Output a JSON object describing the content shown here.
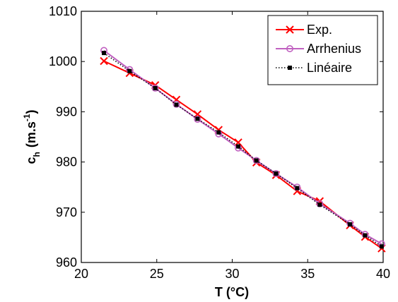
{
  "chart_data": {
    "type": "line",
    "title": "",
    "xlabel": "T (°C)",
    "ylabel": {
      "main": "c",
      "sub": "h",
      "unit_prefix": "(m.s",
      "unit_sup": "-1",
      "unit_suffix": ")"
    },
    "xlim": [
      20,
      40
    ],
    "ylim": [
      960,
      1010
    ],
    "xticks": [
      20,
      25,
      30,
      35,
      40
    ],
    "yticks": [
      960,
      970,
      980,
      990,
      1000,
      1010
    ],
    "xtick_labels": [
      "20",
      "25",
      "30",
      "35",
      "40"
    ],
    "ytick_labels": [
      "960",
      "970",
      "980",
      "990",
      "1000",
      "1010"
    ],
    "grid": false,
    "legend_position": "top-right",
    "series": [
      {
        "name": "Exp.",
        "color": "#ff0000",
        "marker": "x",
        "line_style": "solid",
        "x": [
          21.5,
          23.2,
          24.9,
          26.3,
          27.7,
          29.1,
          30.4,
          31.6,
          32.9,
          34.3,
          35.8,
          37.8,
          38.8,
          39.9
        ],
        "y": [
          1000.1,
          997.7,
          995.3,
          992.4,
          989.5,
          986.4,
          983.9,
          979.9,
          977.4,
          974.2,
          972.2,
          967.4,
          965.1,
          962.8
        ]
      },
      {
        "name": "Arrhenius",
        "color": "#c060c0",
        "marker": "o",
        "line_style": "solid",
        "x": [
          21.5,
          23.2,
          24.9,
          26.3,
          27.7,
          29.1,
          30.4,
          31.6,
          32.9,
          34.3,
          35.8,
          37.8,
          38.8,
          39.9
        ],
        "y": [
          1002.2,
          998.4,
          994.7,
          991.5,
          988.5,
          985.6,
          982.8,
          980.3,
          977.7,
          975.0,
          971.7,
          967.8,
          965.6,
          963.7
        ]
      },
      {
        "name": "Linéaire",
        "color": "#000000",
        "marker": "s",
        "line_style": "dotted",
        "x": [
          21.5,
          23.2,
          24.9,
          26.3,
          27.7,
          29.1,
          30.4,
          31.6,
          32.9,
          34.3,
          35.8,
          37.8,
          38.8,
          39.9
        ],
        "y": [
          1001.7,
          998.1,
          994.7,
          991.4,
          988.6,
          985.9,
          983.1,
          980.3,
          977.7,
          974.8,
          971.5,
          967.6,
          965.4,
          963.2
        ]
      }
    ]
  }
}
